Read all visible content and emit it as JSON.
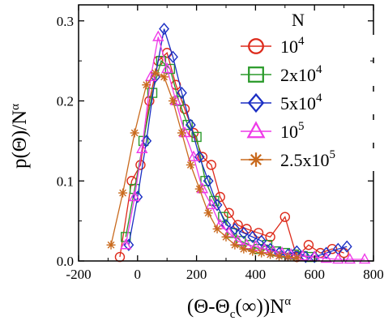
{
  "chart_data": {
    "type": "line",
    "xlim": [
      -200,
      800
    ],
    "ylim": [
      0,
      0.32
    ],
    "xticks": [
      -200,
      0,
      200,
      400,
      600,
      800
    ],
    "xtick_labels": [
      "-200",
      "0",
      "200",
      "400",
      "600",
      "800"
    ],
    "yticks": [
      0.0,
      0.1,
      0.2,
      0.3
    ],
    "ytick_labels": [
      "0.0",
      "0.1",
      "0.2",
      "0.3"
    ],
    "xlabel": "(Θ-Θc(∞))N^α",
    "xlabel_parts": {
      "open": "(Θ-Θ",
      "sub": "c",
      "mid": "(∞))N",
      "sup": "α"
    },
    "ylabel": "p(Θ)/N^α",
    "ylabel_parts": {
      "main": "p(Θ)/N",
      "sup": "α"
    },
    "legend_title": "N",
    "legend_position": "upper-right",
    "series": [
      {
        "name": "10^4",
        "label_base": "10",
        "label_exp": "4",
        "color": "#dd2a1b",
        "marker": "circle",
        "points": [
          [
            -60,
            0.005
          ],
          [
            -20,
            0.1
          ],
          [
            10,
            0.12
          ],
          [
            40,
            0.2
          ],
          [
            70,
            0.25
          ],
          [
            100,
            0.26
          ],
          [
            130,
            0.22
          ],
          [
            160,
            0.19
          ],
          [
            190,
            0.16
          ],
          [
            220,
            0.13
          ],
          [
            250,
            0.12
          ],
          [
            280,
            0.08
          ],
          [
            310,
            0.06
          ],
          [
            340,
            0.045
          ],
          [
            370,
            0.04
          ],
          [
            410,
            0.035
          ],
          [
            450,
            0.03
          ],
          [
            500,
            0.055
          ],
          [
            540,
            0.005
          ],
          [
            580,
            0.02
          ],
          [
            620,
            0.01
          ],
          [
            660,
            0.015
          ],
          [
            700,
            0.01
          ]
        ]
      },
      {
        "name": "2x10^4",
        "label_base": "2x10",
        "label_exp": "4",
        "color": "#2a9a2a",
        "marker": "square",
        "points": [
          [
            -40,
            0.03
          ],
          [
            -10,
            0.09
          ],
          [
            20,
            0.15
          ],
          [
            50,
            0.21
          ],
          [
            80,
            0.25
          ],
          [
            110,
            0.24
          ],
          [
            140,
            0.2
          ],
          [
            170,
            0.17
          ],
          [
            200,
            0.155
          ],
          [
            230,
            0.1
          ],
          [
            260,
            0.075
          ],
          [
            290,
            0.055
          ],
          [
            320,
            0.035
          ],
          [
            350,
            0.025
          ],
          [
            380,
            0.02
          ],
          [
            410,
            0.015
          ],
          [
            440,
            0.02
          ],
          [
            470,
            0.012
          ],
          [
            500,
            0.01
          ],
          [
            530,
            0.008
          ],
          [
            560,
            0.006
          ],
          [
            590,
            0.005
          ]
        ]
      },
      {
        "name": "5x10^4",
        "label_base": "5x10",
        "label_exp": "4",
        "color": "#1b2fc4",
        "marker": "diamond",
        "points": [
          [
            -30,
            0.02
          ],
          [
            0,
            0.08
          ],
          [
            30,
            0.15
          ],
          [
            60,
            0.23
          ],
          [
            90,
            0.29
          ],
          [
            120,
            0.255
          ],
          [
            150,
            0.21
          ],
          [
            180,
            0.17
          ],
          [
            210,
            0.13
          ],
          [
            240,
            0.1
          ],
          [
            270,
            0.07
          ],
          [
            300,
            0.045
          ],
          [
            330,
            0.04
          ],
          [
            360,
            0.035
          ],
          [
            390,
            0.03
          ],
          [
            420,
            0.025
          ],
          [
            450,
            0.015
          ],
          [
            480,
            0.01
          ],
          [
            510,
            0.008
          ],
          [
            540,
            0.012
          ],
          [
            570,
            0.005
          ],
          [
            600,
            0.005
          ],
          [
            640,
            0.01
          ],
          [
            680,
            0.015
          ],
          [
            710,
            0.018
          ]
        ]
      },
      {
        "name": "10^5",
        "label_base": "10",
        "label_exp": "5",
        "color": "#ee3ae8",
        "marker": "triangle",
        "points": [
          [
            -40,
            0.02
          ],
          [
            -10,
            0.08
          ],
          [
            15,
            0.14
          ],
          [
            45,
            0.23
          ],
          [
            70,
            0.28
          ],
          [
            100,
            0.24
          ],
          [
            130,
            0.2
          ],
          [
            160,
            0.16
          ],
          [
            190,
            0.13
          ],
          [
            220,
            0.09
          ],
          [
            250,
            0.07
          ],
          [
            280,
            0.045
          ],
          [
            310,
            0.035
          ],
          [
            340,
            0.025
          ],
          [
            370,
            0.02
          ],
          [
            400,
            0.018
          ],
          [
            430,
            0.015
          ],
          [
            460,
            0.012
          ],
          [
            490,
            0.01
          ],
          [
            520,
            0.008
          ],
          [
            560,
            0.006
          ],
          [
            600,
            0.005
          ],
          [
            640,
            0.003
          ],
          [
            680,
            0.002
          ],
          [
            720,
            0.002
          ],
          [
            770,
            0.002
          ]
        ]
      },
      {
        "name": "2.5x10^5",
        "label_base": "2.5x10",
        "label_exp": "5",
        "color": "#c96a1e",
        "marker": "star",
        "points": [
          [
            -90,
            0.02
          ],
          [
            -50,
            0.085
          ],
          [
            -10,
            0.16
          ],
          [
            30,
            0.22
          ],
          [
            60,
            0.235
          ],
          [
            90,
            0.23
          ],
          [
            120,
            0.2
          ],
          [
            150,
            0.16
          ],
          [
            180,
            0.12
          ],
          [
            210,
            0.09
          ],
          [
            240,
            0.06
          ],
          [
            270,
            0.04
          ],
          [
            300,
            0.03
          ],
          [
            330,
            0.02
          ],
          [
            360,
            0.015
          ],
          [
            390,
            0.012
          ],
          [
            420,
            0.01
          ],
          [
            450,
            0.008
          ],
          [
            480,
            0.006
          ],
          [
            510,
            0.005
          ],
          [
            540,
            0.004
          ]
        ]
      }
    ]
  }
}
